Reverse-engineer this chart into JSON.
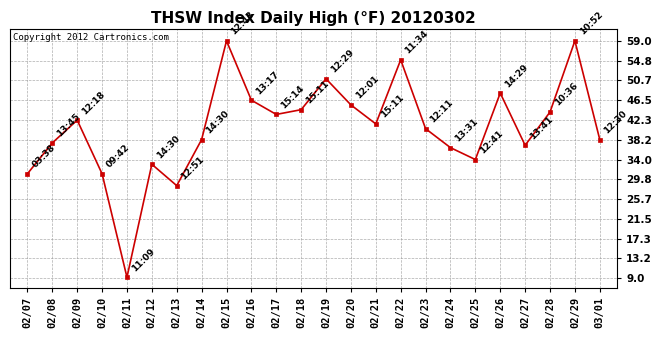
{
  "title": "THSW Index Daily High (°F) 20120302",
  "copyright": "Copyright 2012 Cartronics.com",
  "dates": [
    "02/07",
    "02/08",
    "02/09",
    "02/10",
    "02/11",
    "02/12",
    "02/13",
    "02/14",
    "02/15",
    "02/16",
    "02/17",
    "02/18",
    "02/19",
    "02/20",
    "02/21",
    "02/22",
    "02/23",
    "02/24",
    "02/25",
    "02/26",
    "02/27",
    "02/28",
    "02/29",
    "03/01"
  ],
  "values": [
    31.0,
    37.5,
    42.3,
    31.0,
    9.2,
    33.0,
    28.5,
    38.2,
    59.0,
    46.5,
    43.5,
    44.5,
    51.0,
    45.5,
    41.5,
    55.0,
    40.5,
    36.5,
    34.0,
    48.0,
    37.0,
    44.0,
    59.0,
    38.2
  ],
  "labels": [
    "03:38",
    "13:45",
    "12:18",
    "09:42",
    "11:09",
    "14:30",
    "12:51",
    "14:30",
    "12:43",
    "13:17",
    "15:14",
    "15:11",
    "12:29",
    "12:01",
    "15:11",
    "11:34",
    "12:11",
    "13:31",
    "12:41",
    "14:29",
    "13:41",
    "10:36",
    "10:52",
    "12:30"
  ],
  "line_color": "#cc0000",
  "marker_color": "#cc0000",
  "bg_color": "#ffffff",
  "grid_color": "#999999",
  "plot_bg": "#ffffff",
  "yticks": [
    9.0,
    13.2,
    17.3,
    21.5,
    25.7,
    29.8,
    34.0,
    38.2,
    42.3,
    46.5,
    50.7,
    54.8,
    59.0
  ],
  "ylim": [
    7.0,
    61.5
  ],
  "title_fontsize": 11,
  "label_fontsize": 6.5,
  "tick_fontsize": 7.5,
  "copyright_fontsize": 6.5
}
